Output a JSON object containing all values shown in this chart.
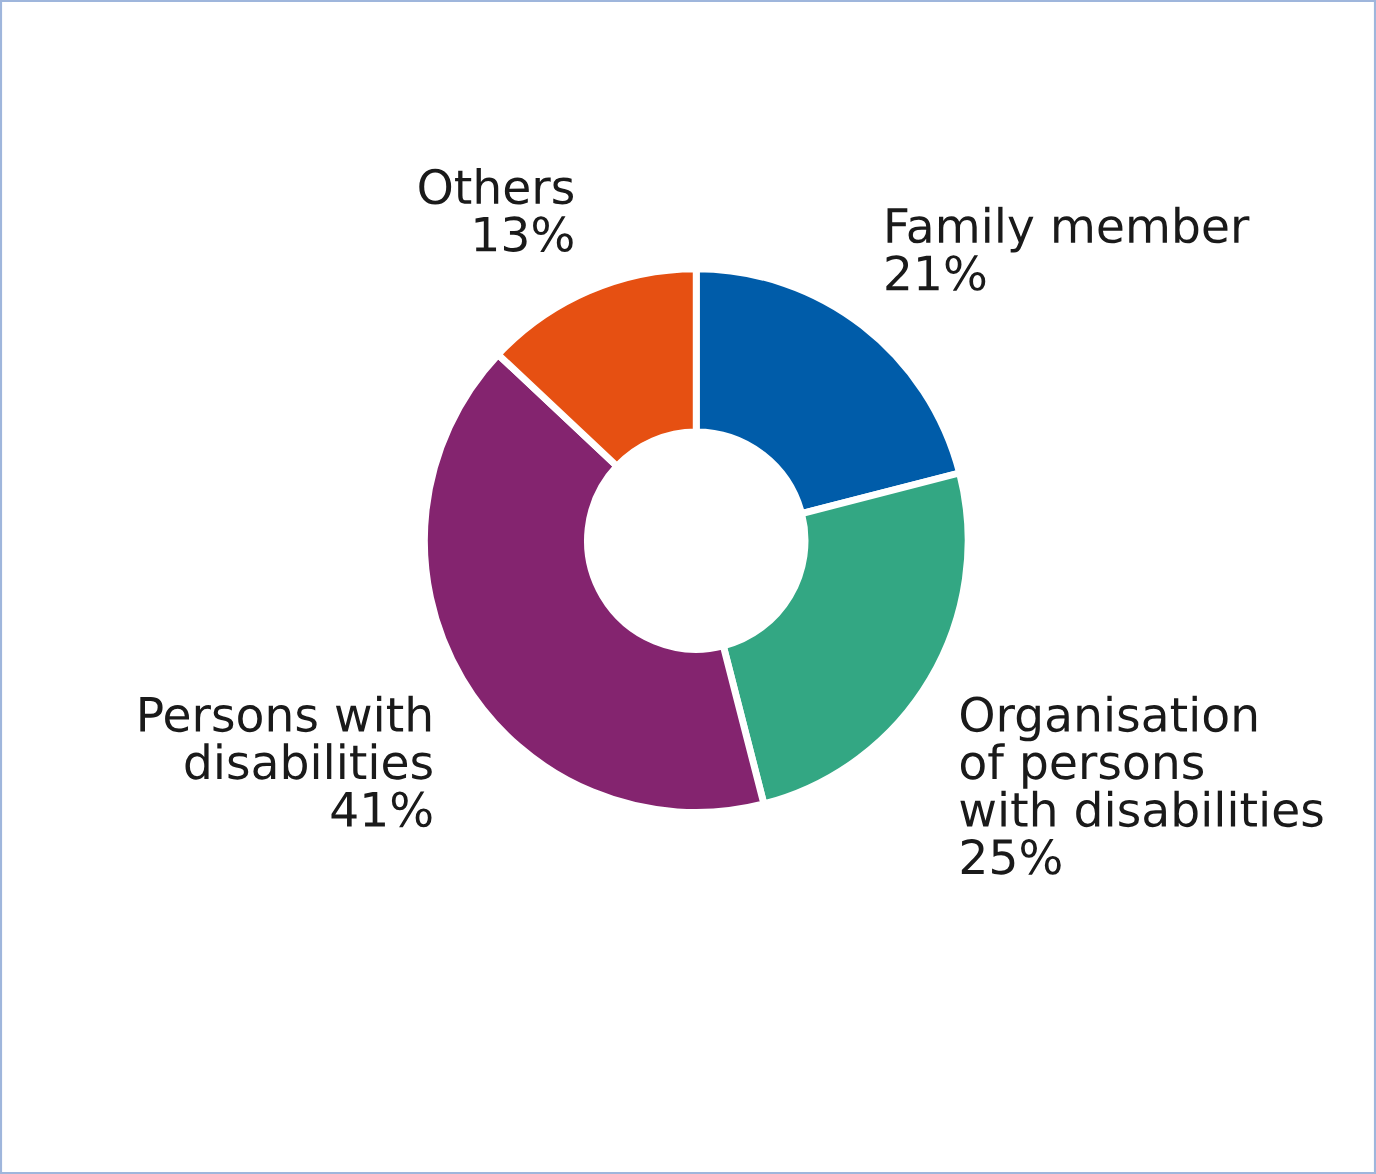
{
  "chart_data": {
    "type": "donut",
    "categories": [
      "Family member",
      "Organisation\nof persons\nwith disabilities",
      "Persons with\ndisabilities",
      "Others"
    ],
    "values": [
      21,
      25,
      41,
      13
    ],
    "value_labels": [
      "21%",
      "25%",
      "41%",
      "13%"
    ],
    "colors": [
      "#005ca9",
      "#33a783",
      "#84246f",
      "#e65012"
    ],
    "legend": false
  }
}
